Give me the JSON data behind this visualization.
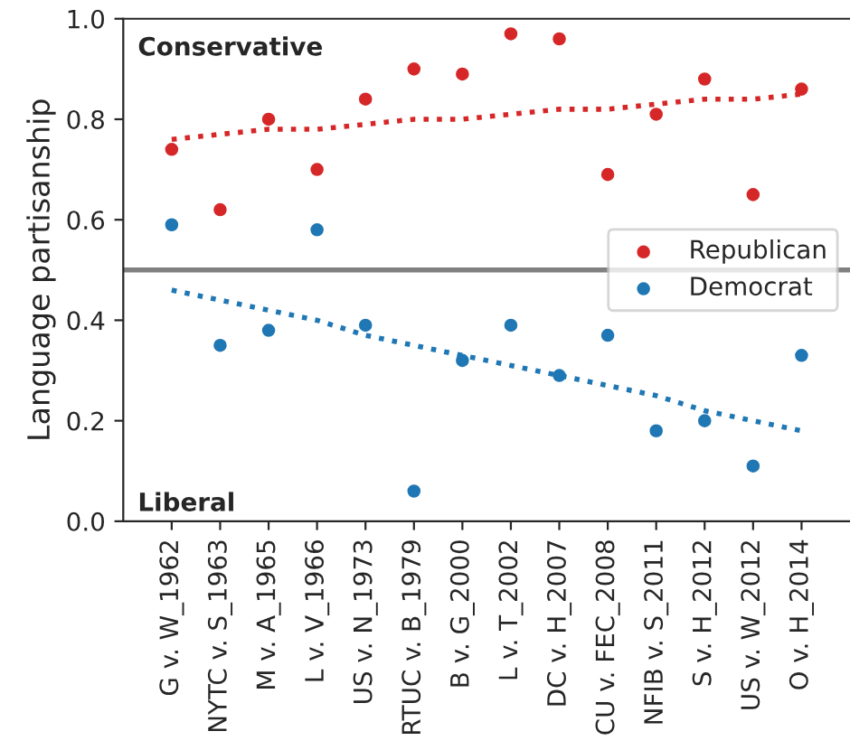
{
  "chart_data": {
    "type": "scatter",
    "ylabel": "Language partisanship",
    "categories": [
      "G v. W_1962",
      "NYTC v. S_1963",
      "M v. A_1965",
      "L v. V_1966",
      "US v. N_1973",
      "RTUC v. B_1979",
      "B v. G_2000",
      "L v. T_2002",
      "DC v. H_2007",
      "CU v. FEC_2008",
      "NFIB v. S_2011",
      "S v. H_2012",
      "US v. W_2012",
      "O v. H_2014"
    ],
    "series": [
      {
        "name": "Republican",
        "color": "#d62728",
        "marker": "circle",
        "values": [
          0.74,
          0.62,
          0.8,
          0.7,
          0.84,
          0.9,
          0.89,
          0.97,
          0.96,
          0.69,
          0.81,
          0.88,
          0.65,
          0.86
        ]
      },
      {
        "name": "Democrat",
        "color": "#1f77b4",
        "marker": "circle",
        "values": [
          0.59,
          0.35,
          0.38,
          0.58,
          0.39,
          0.06,
          0.32,
          0.39,
          0.29,
          0.37,
          0.18,
          0.2,
          0.11,
          0.33
        ]
      },
      {
        "type": "line",
        "color": "#d62728",
        "line_style": "dotted",
        "marker": "none",
        "values": [
          0.76,
          0.77,
          0.78,
          0.78,
          0.79,
          0.8,
          0.8,
          0.81,
          0.82,
          0.82,
          0.83,
          0.84,
          0.84,
          0.85
        ]
      },
      {
        "type": "line",
        "color": "#1f77b4",
        "line_style": "dotted",
        "marker": "none",
        "values": [
          0.46,
          0.44,
          0.42,
          0.4,
          0.37,
          0.35,
          0.33,
          0.31,
          0.29,
          0.27,
          0.25,
          0.22,
          0.2,
          0.18
        ]
      }
    ],
    "ylim": [
      0,
      1
    ],
    "yticks": [
      {
        "value": 0,
        "label": "0.0"
      },
      {
        "value": 0.2,
        "label": "0.2"
      },
      {
        "value": 0.4,
        "label": "0.4"
      },
      {
        "value": 0.6,
        "label": "0.6"
      },
      {
        "value": 0.8,
        "label": "0.8"
      },
      {
        "value": 1,
        "label": "1.0"
      }
    ],
    "ref_lines": [
      {
        "axis": "y",
        "value": 0.5,
        "color": "#808080"
      }
    ],
    "annotations": [
      "Conservative",
      "Liberal"
    ],
    "legend": "right",
    "grid": false
  }
}
